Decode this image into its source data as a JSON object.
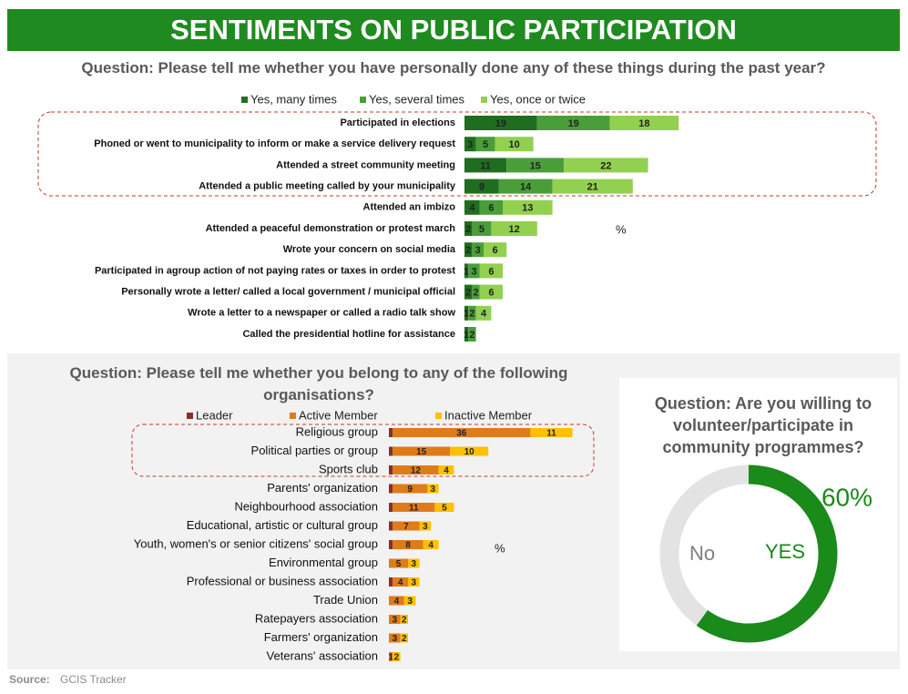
{
  "title": "SENTIMENTS ON PUBLIC PARTICIPATION",
  "source_label": "Source:",
  "source": "GCIS Tracker",
  "chart_data": [
    {
      "type": "bar",
      "orientation": "horizontal",
      "stacked": true,
      "title": "Question: Please tell me whether you have personally done any of these things during the past year?",
      "annotation": "%",
      "categories": [
        "Participated in elections",
        "Phoned or went to municipality to inform or make a service delivery request",
        "Attended a street community meeting",
        "Attended a public meeting called by your municipality",
        "Attended an imbizo",
        "Attended a peaceful demonstration or protest march",
        "Wrote your concern on social media",
        "Participated in agroup action of not paying rates or taxes in order to protest",
        "Personally wrote a letter/ called a local government / municipal official",
        "Wrote a letter to a newspaper or called a radio talk show",
        "Called the presidential hotline for assistance"
      ],
      "series": [
        {
          "name": "Yes, many times",
          "color": "#1f6e1f",
          "values": [
            19,
            3,
            11,
            9,
            4,
            2,
            2,
            1,
            2,
            1,
            1
          ]
        },
        {
          "name": "Yes, several times",
          "color": "#4a9e3a",
          "values": [
            19,
            5,
            15,
            14,
            6,
            5,
            3,
            3,
            2,
            2,
            2
          ]
        },
        {
          "name": "Yes, once or twice",
          "color": "#92d050",
          "values": [
            18,
            10,
            22,
            21,
            13,
            12,
            6,
            6,
            6,
            4,
            null
          ]
        }
      ]
    },
    {
      "type": "bar",
      "orientation": "horizontal",
      "stacked": true,
      "title": "Question: Please tell me whether you belong to any of the following organisations?",
      "annotation": "%",
      "categories": [
        "Religious group",
        "Political parties or group",
        "Sports club",
        "Parents' organization",
        "Neighbourhood association",
        "Educational, artistic or cultural group",
        "Youth, women's or senior citizens' social group",
        "Environmental group",
        "Professional or business association",
        "Trade Union",
        "Ratepayers association",
        "Farmers' organization",
        "Veterans' association"
      ],
      "series": [
        {
          "name": "Leader",
          "color": "#8b2c2c",
          "show_labels": false,
          "values": [
            1,
            1,
            1,
            1,
            1,
            1,
            1,
            0,
            1,
            0,
            0,
            0,
            0
          ]
        },
        {
          "name": "Active Member",
          "color": "#e07b1a",
          "values": [
            36,
            15,
            12,
            9,
            11,
            7,
            8,
            5,
            4,
            4,
            3,
            3,
            1
          ]
        },
        {
          "name": "Inactive Member",
          "color": "#ffc000",
          "values": [
            11,
            10,
            4,
            3,
            5,
            3,
            4,
            3,
            3,
            3,
            2,
            2,
            2
          ]
        }
      ]
    },
    {
      "type": "pie",
      "donut": true,
      "title": "Question: Are you willing to volunteer/participate in community programmes?",
      "categories": [
        "YES",
        "No"
      ],
      "values": [
        60,
        40
      ],
      "value_labels": [
        "60%",
        null
      ],
      "colors": [
        "#1a8a1a",
        "#e3e3e3"
      ]
    }
  ]
}
